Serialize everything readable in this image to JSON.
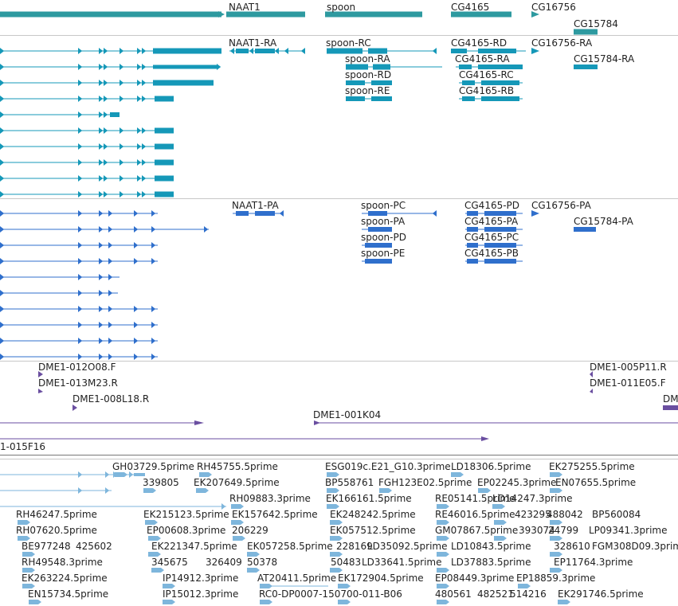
{
  "colors": {
    "gene": "#2e9aa0",
    "mrna": "#1598b8",
    "protein": "#2f6fcc",
    "clone": "#6a4ea0",
    "est": "#7eb6dc",
    "separator": "#c8c8c8",
    "text": "#222222"
  },
  "tracks": {
    "genes": [
      {
        "label": "NAAT1"
      },
      {
        "label": "spoon"
      },
      {
        "label": "CG4165"
      },
      {
        "label": "CG16756"
      },
      {
        "label": "CG15784"
      }
    ],
    "transcripts": [
      {
        "label": "NAAT1-RA"
      },
      {
        "label": "spoon-RC"
      },
      {
        "label": "spoon-RA"
      },
      {
        "label": "spoon-RD"
      },
      {
        "label": "spoon-RE"
      },
      {
        "label": "CG4165-RD"
      },
      {
        "label": "CG4165-RA"
      },
      {
        "label": "CG4165-RC"
      },
      {
        "label": "CG4165-RB"
      },
      {
        "label": "CG16756-RA"
      },
      {
        "label": "CG15784-RA"
      }
    ],
    "proteins": [
      {
        "label": "NAAT1-PA"
      },
      {
        "label": "spoon-PC"
      },
      {
        "label": "spoon-PA"
      },
      {
        "label": "spoon-PD"
      },
      {
        "label": "spoon-PE"
      },
      {
        "label": "CG4165-PD"
      },
      {
        "label": "CG4165-PA"
      },
      {
        "label": "CG4165-PC"
      },
      {
        "label": "CG4165-PB"
      },
      {
        "label": "CG16756-PA"
      },
      {
        "label": "CG15784-PA"
      }
    ],
    "clones": [
      {
        "label": "DME1-012O08.F"
      },
      {
        "label": "DME1-013M23.R"
      },
      {
        "label": "DME1-008L18.R"
      },
      {
        "label": "DME1-005P11.R"
      },
      {
        "label": "DME1-011E05.F"
      },
      {
        "label": "DM"
      },
      {
        "label": "DME1-001K04"
      },
      {
        "label": "1-015F16"
      }
    ],
    "ests": [
      {
        "label": "GH03729.5prime"
      },
      {
        "label": "RH45755.5prime"
      },
      {
        "label": "ESG019c.E21_G10.3prime"
      },
      {
        "label": "LD18306.5prime"
      },
      {
        "label": "EK275255.5prime"
      },
      {
        "label": "339805"
      },
      {
        "label": "EK207649.5prime"
      },
      {
        "label": "BP558761"
      },
      {
        "label": "FGH123E02.5prime"
      },
      {
        "label": "EP02245.3prime"
      },
      {
        "label": "EN07655.5prime"
      },
      {
        "label": "RH09883.3prime"
      },
      {
        "label": "EK166161.5prime"
      },
      {
        "label": "RE05141.5prime"
      },
      {
        "label": "LD14247.3prime"
      },
      {
        "label": "RH46247.5prime"
      },
      {
        "label": "EK215123.5prime"
      },
      {
        "label": "EK157642.5prime"
      },
      {
        "label": "EK248242.5prime"
      },
      {
        "label": "RE46016.5prime"
      },
      {
        "label": "423295"
      },
      {
        "label": "488042"
      },
      {
        "label": "BP560084"
      },
      {
        "label": "RH07620.5prime"
      },
      {
        "label": "EP00608.3prime"
      },
      {
        "label": "206229"
      },
      {
        "label": "EK057512.5prime"
      },
      {
        "label": "GM07867.5prime"
      },
      {
        "label": "393074"
      },
      {
        "label": "24799"
      },
      {
        "label": "LP09341.3prime"
      },
      {
        "label": "BE977248"
      },
      {
        "label": "425602"
      },
      {
        "label": "EK221347.5prime"
      },
      {
        "label": "EK057258.5prime"
      },
      {
        "label": "228169"
      },
      {
        "label": "LD35092.5prime"
      },
      {
        "label": "LD10843.5prime"
      },
      {
        "label": "328610"
      },
      {
        "label": "FGM308D09.3prime"
      },
      {
        "label": "RH49548.3prime"
      },
      {
        "label": "345675"
      },
      {
        "label": "326409"
      },
      {
        "label": "50378"
      },
      {
        "label": "50483"
      },
      {
        "label": "LD33641.5prime"
      },
      {
        "label": "LD37883.5prime"
      },
      {
        "label": "EP11764.3prime"
      },
      {
        "label": "EK263224.5prime"
      },
      {
        "label": "IP14912.3prime"
      },
      {
        "label": "AT20411.5prime"
      },
      {
        "label": "EK172904.5prime"
      },
      {
        "label": "EP08449.3prime"
      },
      {
        "label": "EP18859.3prime"
      },
      {
        "label": "EN15734.5prime"
      },
      {
        "label": "IP15012.3prime"
      },
      {
        "label": "RC0-DP0007-150700-011-B06"
      },
      {
        "label": "480561"
      },
      {
        "label": "482521"
      },
      {
        "label": "514216"
      },
      {
        "label": "EK291746.5prime"
      }
    ]
  }
}
